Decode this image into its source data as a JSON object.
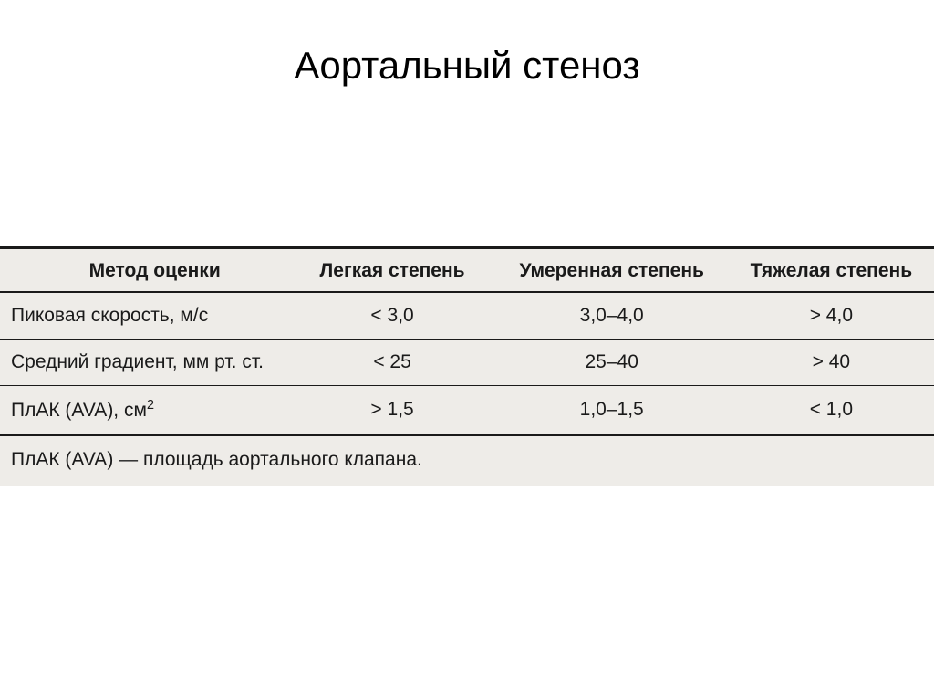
{
  "page": {
    "title": "Аортальный стеноз",
    "title_fontsize": 42,
    "title_color": "#000000",
    "background_color": "#ffffff"
  },
  "table": {
    "type": "table",
    "background_color": "#eeece8",
    "text_color": "#1a1a1a",
    "border_color": "#1a1a1a",
    "header_fontsize": 21,
    "cell_fontsize": 21,
    "header_fontweight": 700,
    "cell_fontweight": 400,
    "top_border_width": 3,
    "header_bottom_border_width": 2,
    "row_border_width": 1.5,
    "bottom_border_width": 3,
    "columns": [
      {
        "label": "Метод оценки",
        "width_pct": 31,
        "align": "left"
      },
      {
        "label": "Легкая степень",
        "width_pct": 22,
        "align": "center"
      },
      {
        "label": "Умеренная степень",
        "width_pct": 25,
        "align": "center"
      },
      {
        "label": "Тяжелая степень",
        "width_pct": 22,
        "align": "center"
      }
    ],
    "rows": [
      {
        "name": "Пиковая скорость, м/с",
        "mild": "< 3,0",
        "moderate": "3,0–4,0",
        "severe": "> 4,0"
      },
      {
        "name": "Средний градиент, мм рт. ст.",
        "mild": "< 25",
        "moderate": "25–40",
        "severe": "> 40"
      },
      {
        "name_prefix": "ПлАК (AVA), см",
        "name_sup": "2",
        "mild": "> 1,5",
        "moderate": "1,0–1,5",
        "severe": "< 1,0"
      }
    ],
    "footnote": "ПлАК (AVA) — площадь аортального клапана."
  }
}
